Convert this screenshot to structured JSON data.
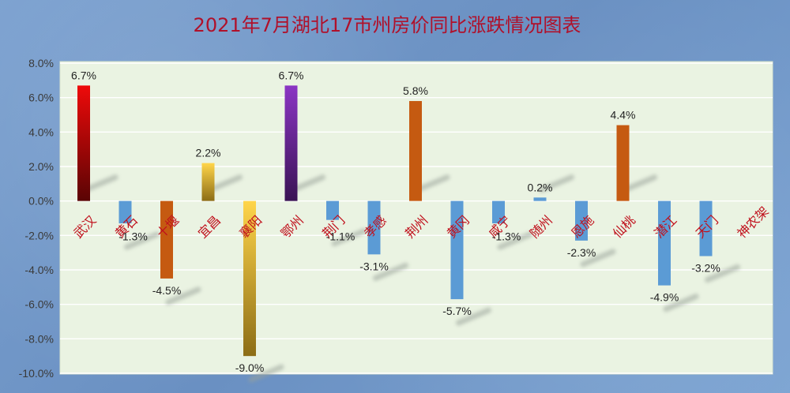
{
  "chart_data": {
    "type": "bar",
    "title": "2021年7月湖北17市州房价同比涨跌情况图表",
    "xlabel": "",
    "ylabel": "",
    "ylim": [
      -10,
      8
    ],
    "yticks": [
      "8.0%",
      "6.0%",
      "4.0%",
      "2.0%",
      "0.0%",
      "-2.0%",
      "-4.0%",
      "-6.0%",
      "-8.0%",
      "-10.0%"
    ],
    "grid": true,
    "legend": "none",
    "categories": [
      "武汉",
      "黄石",
      "十堰",
      "宜昌",
      "襄阳",
      "鄂州",
      "荆门",
      "孝感",
      "荆州",
      "黄冈",
      "咸宁",
      "随州",
      "恩施",
      "仙桃",
      "潜江",
      "天门",
      "神农架"
    ],
    "values": [
      6.7,
      -1.3,
      -4.5,
      2.2,
      -9.0,
      6.7,
      -1.1,
      -3.1,
      5.8,
      -5.7,
      -1.3,
      0.2,
      -2.3,
      4.4,
      -4.9,
      -3.2,
      null
    ],
    "value_labels": [
      "6.7%",
      "-1.3%",
      "-4.5%",
      "2.2%",
      "-9.0%",
      "6.7%",
      "-1.1%",
      "-3.1%",
      "5.8%",
      "-5.7%",
      "-1.3%",
      "0.2%",
      "-2.3%",
      "4.4%",
      "-4.9%",
      "-3.2%",
      ""
    ],
    "bar_colors": [
      "red",
      "blue",
      "orange",
      "gold",
      "gold",
      "purple",
      "blue",
      "blue",
      "orange",
      "blue",
      "blue",
      "blue",
      "blue",
      "orange",
      "blue",
      "blue",
      "blue"
    ],
    "colors": {
      "plot_background": "#eaf3e2",
      "title": "#b0102a",
      "category_label": "#c0101c",
      "grid": "#ffffff",
      "blue": "#5b9bd5",
      "orange": "#c55a11",
      "red_top": "#ee0a0a",
      "red_bottom": "#5a0404",
      "purple_top": "#8b35c4",
      "purple_bottom": "#3a1354",
      "gold_light": "#ffd54a",
      "gold_dark": "#8c6d16"
    }
  }
}
